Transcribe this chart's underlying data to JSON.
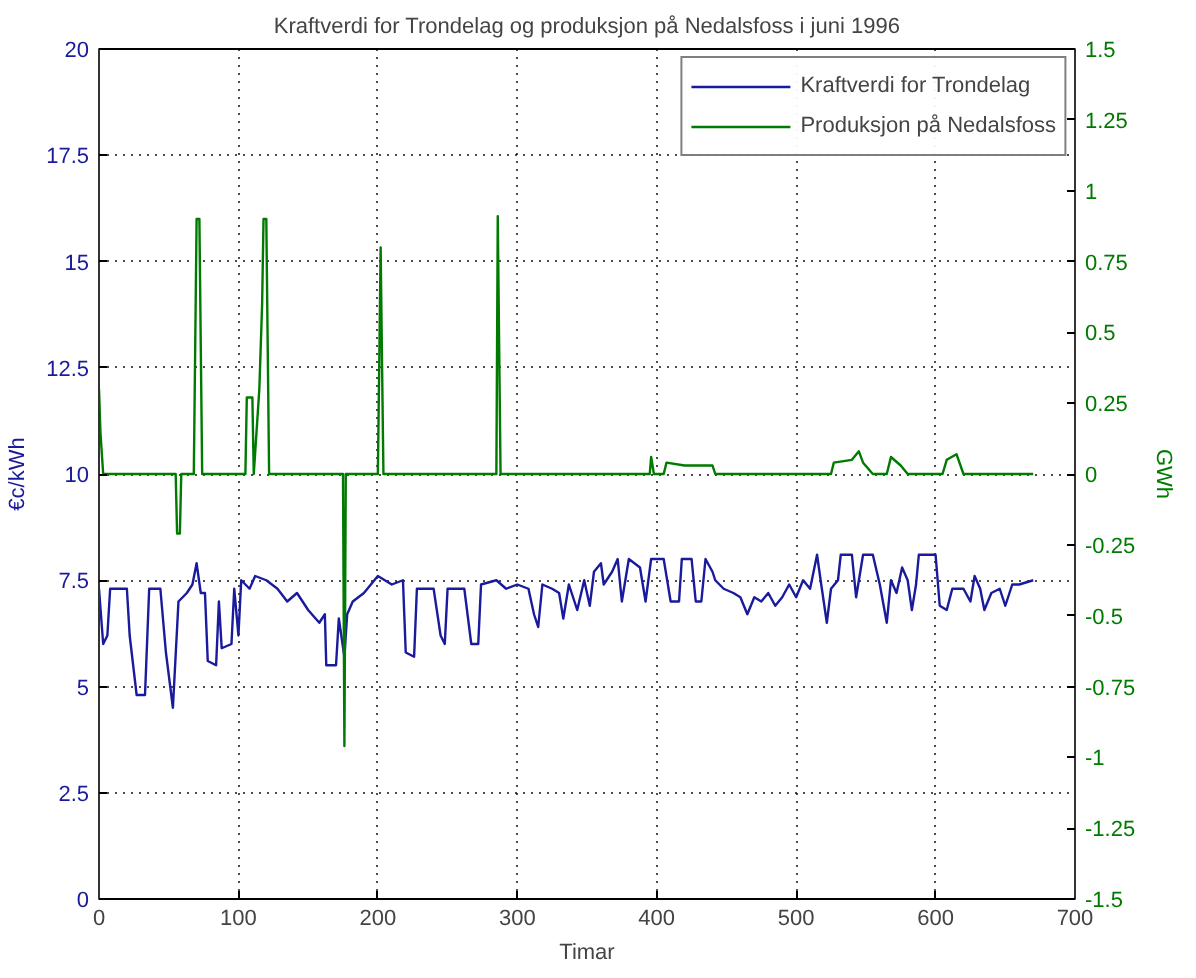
{
  "chart_data": {
    "type": "line",
    "title": "Kraftverdi for Trondelag og produksjon på Nedalsfoss i juni 1996",
    "xlabel": "Timar",
    "ylabel": "€c/kWh",
    "y2label": "GWh",
    "xlim": [
      0,
      700
    ],
    "xticks": [
      0,
      100,
      200,
      300,
      400,
      500,
      600,
      700
    ],
    "ylim": [
      0,
      20
    ],
    "yticks": [
      0,
      2.5,
      5,
      7.5,
      10,
      12.5,
      15,
      17.5,
      20
    ],
    "y2lim": [
      -1.5,
      1.5
    ],
    "y2ticks": [
      -1.5,
      -1.25,
      -1,
      -0.75,
      -0.5,
      -0.25,
      0,
      0.25,
      0.5,
      0.75,
      1,
      1.25,
      1.5
    ],
    "grid": true,
    "legend": "top right",
    "line_style": "solid",
    "series": [
      {
        "name": "Kraftverdi for Trondelag",
        "color": "#1a1a9c",
        "x": [
          0,
          3,
          6,
          8,
          20,
          22,
          27,
          33,
          36,
          44,
          48,
          53,
          57,
          63,
          67,
          70,
          73,
          76,
          78,
          84,
          86,
          88,
          95,
          97,
          100,
          102,
          108,
          112,
          120,
          128,
          135,
          142,
          150,
          158,
          162,
          163,
          170,
          172,
          176,
          178,
          182,
          190,
          200,
          210,
          218,
          220,
          226,
          228,
          240,
          245,
          248,
          250,
          262,
          267,
          272,
          274,
          285,
          292,
          300,
          308,
          312,
          315,
          318,
          325,
          330,
          333,
          337,
          343,
          348,
          352,
          355,
          360,
          362,
          368,
          372,
          375,
          380,
          388,
          392,
          396,
          405,
          410,
          416,
          418,
          425,
          428,
          432,
          435,
          440,
          442,
          448,
          455,
          460,
          465,
          470,
          475,
          480,
          485,
          490,
          495,
          500,
          505,
          510,
          515,
          518,
          522,
          525,
          530,
          532,
          540,
          543,
          548,
          555,
          560,
          565,
          568,
          572,
          576,
          580,
          583,
          586,
          588,
          600,
          603,
          608,
          612,
          620,
          625,
          628,
          632,
          635,
          640,
          646,
          650,
          655,
          660,
          670
        ],
        "values": [
          7.3,
          6.0,
          6.2,
          7.3,
          7.3,
          6.2,
          4.8,
          4.8,
          7.3,
          7.3,
          5.8,
          4.5,
          7.0,
          7.2,
          7.4,
          7.9,
          7.2,
          7.2,
          5.6,
          5.5,
          7.0,
          5.9,
          6.0,
          7.3,
          6.2,
          7.5,
          7.3,
          7.6,
          7.5,
          7.3,
          7.0,
          7.2,
          6.8,
          6.5,
          6.7,
          5.5,
          5.5,
          6.6,
          5.7,
          6.7,
          7.0,
          7.2,
          7.6,
          7.4,
          7.5,
          5.8,
          5.7,
          7.3,
          7.3,
          6.2,
          6.0,
          7.3,
          7.3,
          6.0,
          6.0,
          7.4,
          7.5,
          7.3,
          7.4,
          7.3,
          6.7,
          6.4,
          7.4,
          7.3,
          7.2,
          6.6,
          7.4,
          6.8,
          7.5,
          6.9,
          7.7,
          7.9,
          7.4,
          7.7,
          8.0,
          7.0,
          8.0,
          7.8,
          7.0,
          8.0,
          8.0,
          7.0,
          7.0,
          8.0,
          8.0,
          7.0,
          7.0,
          8.0,
          7.7,
          7.5,
          7.3,
          7.2,
          7.1,
          6.7,
          7.1,
          7.0,
          7.2,
          6.9,
          7.1,
          7.4,
          7.1,
          7.5,
          7.3,
          8.1,
          7.4,
          6.5,
          7.3,
          7.5,
          8.1,
          8.1,
          7.1,
          8.1,
          8.1,
          7.4,
          6.5,
          7.5,
          7.2,
          7.8,
          7.5,
          6.8,
          7.4,
          8.1,
          8.1,
          6.9,
          6.8,
          7.3,
          7.3,
          7.0,
          7.6,
          7.3,
          6.8,
          7.2,
          7.3,
          6.9,
          7.4,
          7.4,
          7.5
        ]
      },
      {
        "name": "Produksjon på Nedalsfoss",
        "color": "#007a00",
        "axis": "y2",
        "x": [
          0,
          1,
          3,
          55,
          56,
          58,
          59,
          68,
          69,
          70,
          72,
          73,
          74,
          105,
          106,
          110,
          111,
          113,
          115,
          117,
          118,
          120,
          121,
          122,
          175,
          176,
          177,
          200,
          201,
          202,
          203,
          204,
          285,
          286,
          287,
          288,
          395,
          396,
          398,
          405,
          407,
          420,
          440,
          442,
          525,
          527,
          540,
          545,
          548,
          555,
          565,
          568,
          575,
          580,
          605,
          608,
          615,
          620,
          670
        ],
        "values": [
          0.3,
          0.15,
          0,
          0,
          -0.21,
          -0.21,
          0,
          0,
          0.45,
          0.9,
          0.9,
          0.45,
          0,
          0,
          0.27,
          0.27,
          0,
          0.15,
          0.3,
          0.6,
          0.9,
          0.9,
          0.45,
          0,
          0,
          -0.96,
          0,
          0,
          0.39,
          0.8,
          0.39,
          0,
          0,
          0.91,
          0.45,
          0,
          0,
          0.06,
          0,
          0,
          0.04,
          0.03,
          0.03,
          0,
          0,
          0.04,
          0.05,
          0.08,
          0.04,
          0,
          0,
          0.06,
          0.03,
          0,
          0,
          0.05,
          0.07,
          0,
          0
        ]
      }
    ]
  }
}
